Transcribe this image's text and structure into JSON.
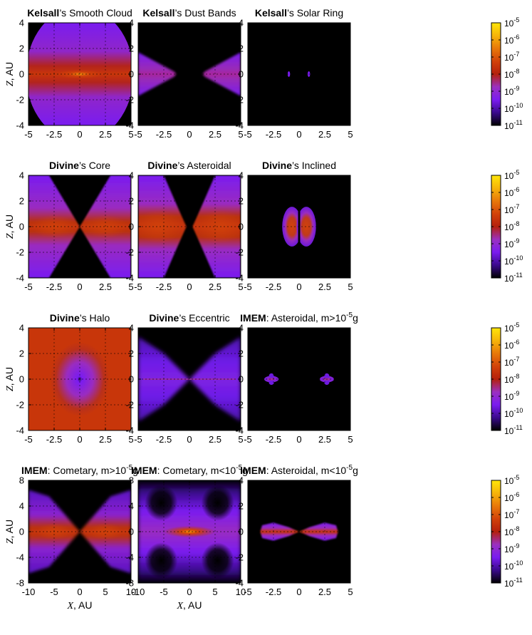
{
  "chart_data": {
    "type": "heatmap",
    "layout": "4x3 grid",
    "colorbar": {
      "scale": "log",
      "range": [
        1e-11,
        1e-05
      ],
      "tick_labels": [
        {
          "base": "10",
          "exp": "-5"
        },
        {
          "base": "10",
          "exp": "-6"
        },
        {
          "base": "10",
          "exp": "-7"
        },
        {
          "base": "10",
          "exp": "-8"
        },
        {
          "base": "10",
          "exp": "-9"
        },
        {
          "base": "10",
          "exp": "-10"
        },
        {
          "base": "10",
          "exp": "-11"
        }
      ],
      "colors": [
        "#000000",
        "#3a0a8c",
        "#7a1cf0",
        "#9b30c0",
        "#b4200c",
        "#d2420a",
        "#e8780a",
        "#f6b40a",
        "#ffe60a"
      ],
      "shown_right_of_panels": [
        3,
        6,
        9,
        12
      ]
    },
    "panels": [
      {
        "id": 1,
        "title": {
          "bold": "Kelsall",
          "rest": "’s Smooth Cloud",
          "sup": "",
          "after": ""
        },
        "xlim": [
          -5,
          5
        ],
        "ylim": [
          -4,
          4
        ],
        "xticks": [
          "-5",
          "-2.5",
          "0",
          "2.5",
          "5"
        ],
        "yticks": [
          "4",
          "2",
          "0",
          "-2",
          "-4"
        ],
        "ylabel": {
          "italic": "Z",
          "rest": ", AU"
        },
        "xlabel": null,
        "model": "smooth",
        "peak_color": "#e8780a",
        "bg_color": "#7a1cf0",
        "clip_radius_au": 5.2
      },
      {
        "id": 2,
        "title": {
          "bold": "Kelsall",
          "rest": "’s Dust Bands",
          "sup": "",
          "after": ""
        },
        "xlim": [
          -5,
          5
        ],
        "ylim": [
          -4,
          4
        ],
        "xticks": [
          "-5",
          "-2.5",
          "0",
          "2.5",
          "5"
        ],
        "yticks": [
          "4",
          "2",
          "0",
          "-2",
          "-4"
        ],
        "ylabel": null,
        "xlabel": null,
        "model": "bands",
        "peak_color": "#b0206a",
        "bg_color": "#7a1cf0",
        "inner_radius_au": 1.2
      },
      {
        "id": 3,
        "title": {
          "bold": "Kelsall",
          "rest": "’s Solar Ring",
          "sup": "",
          "after": ""
        },
        "xlim": [
          -5,
          5
        ],
        "ylim": [
          -4,
          4
        ],
        "xticks": [
          "-5",
          "-2.5",
          "0",
          "2.5",
          "5"
        ],
        "yticks": [
          "4",
          "2",
          "0",
          "-2",
          "-4"
        ],
        "ylabel": null,
        "xlabel": null,
        "model": "ring",
        "peak_color": "#7a1cf0",
        "ring_radius_au": 1.0
      },
      {
        "id": 4,
        "title": {
          "bold": "Divine",
          "rest": "’s Core",
          "sup": "",
          "after": ""
        },
        "xlim": [
          -5,
          5
        ],
        "ylim": [
          -4,
          4
        ],
        "xticks": [
          "-5",
          "-2.5",
          "0",
          "2.5",
          "5"
        ],
        "yticks": [
          "4",
          "2",
          "0",
          "-2",
          "-4"
        ],
        "ylabel": {
          "italic": "Z",
          "rest": ", AU"
        },
        "xlabel": null,
        "model": "core",
        "peak_color": "#d2420a",
        "bg_color": "#7a1cf0"
      },
      {
        "id": 5,
        "title": {
          "bold": "Divine",
          "rest": "’s Asteroidal",
          "sup": "",
          "after": ""
        },
        "xlim": [
          -5,
          5
        ],
        "ylim": [
          -4,
          4
        ],
        "xticks": [
          "-5",
          "-2.5",
          "0",
          "2.5",
          "5"
        ],
        "yticks": [
          "4",
          "2",
          "0",
          "-2",
          "-4"
        ],
        "ylabel": null,
        "xlabel": null,
        "model": "asteroidal",
        "peak_color": "#d2420a",
        "bg_color": "#7a1cf0"
      },
      {
        "id": 6,
        "title": {
          "bold": "Divine",
          "rest": "’s Inclined",
          "sup": "",
          "after": ""
        },
        "xlim": [
          -5,
          5
        ],
        "ylim": [
          -4,
          4
        ],
        "xticks": [
          "-5",
          "-2.5",
          "0",
          "2.5",
          "5"
        ],
        "yticks": [
          "4",
          "2",
          "0",
          "-2",
          "-4"
        ],
        "ylabel": null,
        "xlabel": null,
        "model": "inclined",
        "peak_color": "#d2420a",
        "bg_color": "#7a1cf0"
      },
      {
        "id": 7,
        "title": {
          "bold": "Divine",
          "rest": "’s Halo",
          "sup": "",
          "after": ""
        },
        "xlim": [
          -5,
          5
        ],
        "ylim": [
          -4,
          4
        ],
        "xticks": [
          "-5",
          "-2.5",
          "0",
          "2.5",
          "5"
        ],
        "yticks": [
          "4",
          "2",
          "0",
          "-2",
          "-4"
        ],
        "ylabel": {
          "italic": "Z",
          "rest": ", AU"
        },
        "xlabel": null,
        "model": "halo",
        "peak_color": "#c8360a",
        "bg_color": "#7a1cf0"
      },
      {
        "id": 8,
        "title": {
          "bold": "Divine",
          "rest": "’s Eccentric",
          "sup": "",
          "after": ""
        },
        "xlim": [
          -5,
          5
        ],
        "ylim": [
          -4,
          4
        ],
        "xticks": [
          "-5",
          "-2.5",
          "0",
          "2.5",
          "5"
        ],
        "yticks": [
          "4",
          "2",
          "0",
          "-2",
          "-4"
        ],
        "ylabel": null,
        "xlabel": null,
        "model": "eccentric",
        "peak_color": "#9b30c0",
        "bg_color": "#6a1ae0"
      },
      {
        "id": 9,
        "title": {
          "bold": "IMEM",
          "rest": ": Asteroidal, m>10",
          "sup": "-5",
          "after": "g"
        },
        "xlim": [
          -5,
          5
        ],
        "ylim": [
          -4,
          4
        ],
        "xticks": [
          "-5",
          "-2.5",
          "0",
          "2.5",
          "5"
        ],
        "yticks": [
          "4",
          "2",
          "0",
          "-2",
          "-4"
        ],
        "ylabel": null,
        "xlabel": null,
        "model": "imem_ast_big",
        "peak_color": "#9b30c0",
        "bg_color": "#6a1ae0"
      },
      {
        "id": 10,
        "title": {
          "bold": "IMEM",
          "rest": ": Cometary, m>10",
          "sup": "-5",
          "after": "g"
        },
        "xlim": [
          -10,
          10
        ],
        "ylim": [
          -8,
          8
        ],
        "xticks": [
          "-10",
          "-5",
          "0",
          "5",
          "10"
        ],
        "yticks": [
          "8",
          "4",
          "0",
          "-4",
          "-8"
        ],
        "ylabel": {
          "italic": "Z",
          "rest": ", AU"
        },
        "xlabel": {
          "italic": "X",
          "rest": ", AU"
        },
        "model": "comet_big",
        "peak_color": "#d2420a",
        "bg_color": "#7a1cf0"
      },
      {
        "id": 11,
        "title": {
          "bold": "IMEM",
          "rest": ": Cometary, m<10",
          "sup": "-5",
          "after": "g"
        },
        "xlim": [
          -10,
          10
        ],
        "ylim": [
          -8,
          8
        ],
        "xticks": [
          "-10",
          "-5",
          "0",
          "5",
          "10"
        ],
        "yticks": [
          "8",
          "4",
          "0",
          "-4",
          "-8"
        ],
        "ylabel": null,
        "xlabel": {
          "italic": "X",
          "rest": ", AU"
        },
        "model": "comet_small",
        "peak_color": "#e8780a",
        "bg_color": "#7a1cf0"
      },
      {
        "id": 12,
        "title": {
          "bold": "IMEM",
          "rest": ": Asteroidal, m<10",
          "sup": "-5",
          "after": "g"
        },
        "xlim": [
          -5,
          5
        ],
        "ylim": [
          -4,
          4
        ],
        "xticks": [
          "-5",
          "-2.5",
          "0",
          "2.5",
          "5"
        ],
        "yticks": [
          "4",
          "2",
          "0",
          "-2",
          "-4"
        ],
        "ylabel": null,
        "xlabel": null,
        "model": "imem_ast_small",
        "peak_color": "#c82c0a",
        "bg_color": "#7a1cf0"
      }
    ]
  }
}
